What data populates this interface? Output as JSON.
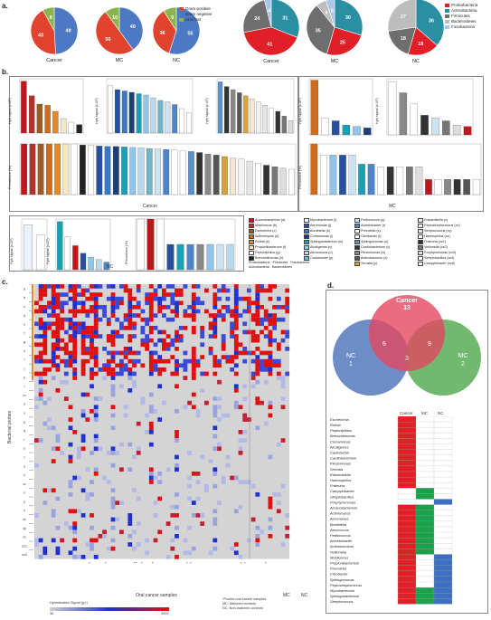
{
  "panels": {
    "a": "a.",
    "b": "b.",
    "c": "c.",
    "d": "d."
  },
  "a": {
    "gram_legend": [
      {
        "label": "Gram positive",
        "color": "#e0442f"
      },
      {
        "label": "Gram negative",
        "color": "#4b79c4"
      },
      {
        "label": "Acid fast",
        "color": "#8ab54a"
      }
    ],
    "phylum_legend": [
      {
        "label": "Proteobacteria",
        "color": "#e01f26"
      },
      {
        "label": "Actinobacteria",
        "color": "#2a8fa3"
      },
      {
        "label": "Firmicutes",
        "color": "#6e6e6e"
      },
      {
        "label": "Bacteroidetes",
        "color": "#bdbdbd"
      },
      {
        "label": "Fusobacteria",
        "color": "#a9c5e8"
      }
    ],
    "gram_pies": [
      {
        "caption": "Cancer",
        "slices": [
          {
            "v": 49,
            "c": "#4b79c4"
          },
          {
            "v": 43,
            "c": "#e0442f"
          },
          {
            "v": 8,
            "c": "#8ab54a"
          }
        ]
      },
      {
        "caption": "MC",
        "slices": [
          {
            "v": 40,
            "c": "#4b79c4"
          },
          {
            "v": 50,
            "c": "#e0442f"
          },
          {
            "v": 10,
            "c": "#8ab54a"
          }
        ]
      },
      {
        "caption": "NC",
        "slices": [
          {
            "v": 55,
            "c": "#4b79c4"
          },
          {
            "v": 36,
            "c": "#e0442f"
          },
          {
            "v": 9,
            "c": "#8ab54a"
          }
        ]
      }
    ],
    "phylum_pies": [
      {
        "caption": "Cancer",
        "slices": [
          {
            "v": 31,
            "c": "#2a8fa3"
          },
          {
            "v": 41,
            "c": "#e01f26"
          },
          {
            "v": 24,
            "c": "#6e6e6e"
          },
          {
            "v": 4,
            "c": "#a9c5e8"
          }
        ]
      },
      {
        "caption": "MC",
        "slices": [
          {
            "v": 30,
            "c": "#2a8fa3"
          },
          {
            "v": 25,
            "c": "#e01f26"
          },
          {
            "v": 35,
            "c": "#6e6e6e"
          },
          {
            "v": 6,
            "c": "#bdbdbd"
          },
          {
            "v": 5,
            "c": "#a9c5e8"
          }
        ]
      },
      {
        "caption": "NC",
        "slices": [
          {
            "v": 36,
            "c": "#2a8fa3"
          },
          {
            "v": 18,
            "c": "#e01f26"
          },
          {
            "v": 18,
            "c": "#6e6e6e"
          },
          {
            "v": 27,
            "c": "#bdbdbd"
          }
        ]
      }
    ]
  },
  "b": {
    "hyb_axis": "Hyb signal (x10³)",
    "prev_axis": "Prevalence (%)",
    "group_cancer": "Cancer",
    "group_mc": "MC",
    "group_nc": "NC",
    "legend_col1": [
      "Arcanobacterium (a)",
      "Mobiluncus (b)",
      "Eschericha (c)",
      "Actinomyces (d)",
      "Rothia (e)",
      "Propionibacterium (f)",
      "Peptoniphilus (g)",
      "Brevundimonas (h)"
    ],
    "legend_col2": [
      "Mycobacterium (i)",
      "Aeromonas (j)",
      "Bordetella (k)",
      "Comamonas (l)",
      "Sphingobacterium (m)",
      "Alcaligenes (n)",
      "Aerococcus (o)",
      "Caulobacter (p)"
    ],
    "legend_col3": [
      "Pediococcus (q)",
      "Acinetobacter (r)",
      "Prevotella (s)",
      "Citrobacter (t)",
      "Sphingomonas (u)",
      "Cardiobacterium (v)",
      "Plesiomonas (w)",
      "Actinobaculum (x)",
      "Serratia (y)"
    ],
    "legend_col4": [
      "Edwardsiella (z)",
      "Peptostreptococcus (xx)",
      "Streptococcus (xy)",
      "Haemophilus (xz)",
      "Frateuria (xz1)",
      "Veillonella (xz2)",
      "Porphyromonas (xz3)",
      "Streptobacillus (xz4)",
      "Campylobacter (xz5)"
    ],
    "legend_key": [
      "Proteobacteria",
      "Firmicutes",
      "Fusobacteria",
      "Actinobacteria",
      "Bacteroidetes"
    ]
  },
  "c": {
    "y_axis": "Bacterial probes",
    "x_axis": "Oral cancer samples",
    "row_groups": [
      "a",
      "b",
      "c",
      "d",
      "e",
      "f",
      "g",
      "h",
      "i",
      "j",
      "k",
      "l",
      "m",
      "n",
      "o",
      "p",
      "q",
      "r",
      "s",
      "t",
      "u",
      "v",
      "w",
      "x",
      "y",
      "z",
      "xx",
      "xy",
      "xz",
      "xz1",
      "xz2"
    ],
    "mc": "MC",
    "nc": "NC",
    "scale_title": "Hybridization Signal (g-r)",
    "scale_min": "30",
    "scale_max": "3000",
    "notes": [
      "*Pooled oral cancer samples",
      "MC: Matched controls",
      "NC: Non-matched controls"
    ]
  },
  "d": {
    "venn": {
      "cancer": "Cancer",
      "cancer_n": "13",
      "nc": "NC",
      "nc_n": "1",
      "mc": "MC",
      "mc_n": "2",
      "i_cancer_nc": "6",
      "i_cancer_mc": "9",
      "i_all": "3"
    },
    "cols": [
      "Cancer",
      "MC",
      "NC"
    ],
    "genera": [
      "Escherichia",
      "Rothia",
      "Peptoniphilus",
      "Brevundimonas",
      "Comamonas",
      "Alcaligenes",
      "Caulobacter",
      "Cardiobacterium",
      "Plesiomonas",
      "Serratia",
      "Edwardsiella",
      "Haemophilus",
      "Frateuria",
      "Campylobacter",
      "Streptobacillus",
      "Porphyromonas",
      "Arcanobacterium",
      "Actinomyces",
      "Aeromonas",
      "Bordetella",
      "Aerococcus",
      "Pediococcus",
      "Acinetobacter",
      "Actinobaculum",
      "Veillonella",
      "Mobiluncus",
      "Propionibacterium",
      "Prevotella",
      "Citrobacter",
      "Sphingomonas",
      "Peptostreptococcus",
      "Mycobacterium",
      "Sphingobacterium",
      "Streptococcus"
    ],
    "presence": [
      [
        1,
        0,
        0
      ],
      [
        1,
        0,
        0
      ],
      [
        1,
        0,
        0
      ],
      [
        1,
        0,
        0
      ],
      [
        1,
        0,
        0
      ],
      [
        1,
        0,
        0
      ],
      [
        1,
        0,
        0
      ],
      [
        1,
        0,
        0
      ],
      [
        1,
        0,
        0
      ],
      [
        1,
        0,
        0
      ],
      [
        1,
        0,
        0
      ],
      [
        1,
        0,
        0
      ],
      [
        1,
        0,
        0
      ],
      [
        0,
        1,
        0
      ],
      [
        0,
        1,
        0
      ],
      [
        0,
        0,
        1
      ],
      [
        1,
        1,
        0
      ],
      [
        1,
        1,
        0
      ],
      [
        1,
        1,
        0
      ],
      [
        1,
        1,
        0
      ],
      [
        1,
        1,
        0
      ],
      [
        1,
        1,
        0
      ],
      [
        1,
        1,
        0
      ],
      [
        1,
        1,
        0
      ],
      [
        1,
        1,
        0
      ],
      [
        1,
        0,
        1
      ],
      [
        1,
        0,
        1
      ],
      [
        1,
        0,
        1
      ],
      [
        1,
        0,
        1
      ],
      [
        1,
        0,
        1
      ],
      [
        1,
        0,
        1
      ],
      [
        1,
        1,
        1
      ],
      [
        1,
        1,
        1
      ],
      [
        1,
        1,
        1
      ]
    ],
    "colors": {
      "cancer": "#e01f26",
      "mc": "#1aa14a",
      "nc": "#3d6fc2"
    }
  }
}
